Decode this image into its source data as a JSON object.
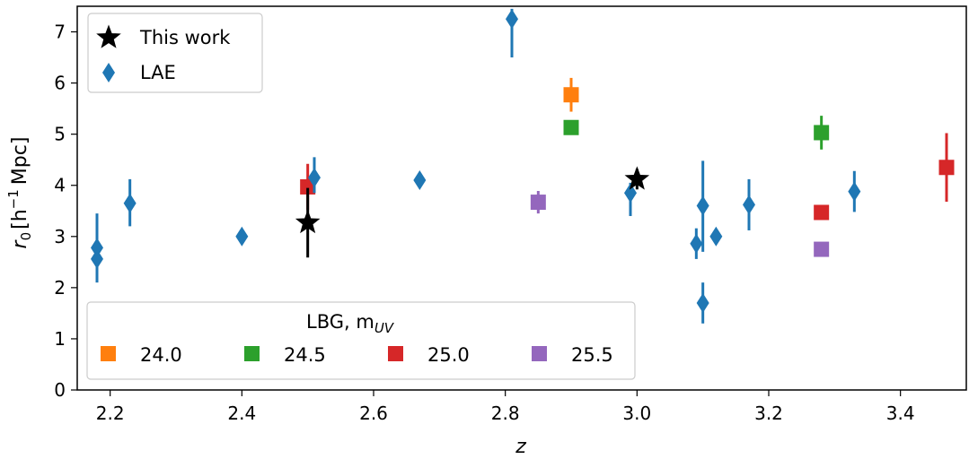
{
  "chart_data": {
    "type": "scatter",
    "xlabel": "z",
    "ylabel_main": "r",
    "ylabel_sub": "0",
    "ylabel_units": "[h",
    "ylabel_sup": "−1",
    "ylabel_tail": "Mpc]",
    "xlim": [
      2.15,
      3.5
    ],
    "ylim": [
      0,
      7.5
    ],
    "xticks": [
      "2.2",
      "2.4",
      "2.6",
      "2.8",
      "3.0",
      "3.2",
      "3.4"
    ],
    "xtick_values": [
      2.2,
      2.4,
      2.6,
      2.8,
      3.0,
      3.2,
      3.4
    ],
    "yticks": [
      "0",
      "1",
      "2",
      "3",
      "4",
      "5",
      "6",
      "7"
    ],
    "ytick_values": [
      0,
      1,
      2,
      3,
      4,
      5,
      6,
      7
    ],
    "grid": false,
    "legend_top": {
      "placement": "top-left",
      "entries": [
        {
          "label": "This work",
          "marker": "star",
          "color": "#000000"
        },
        {
          "label": "LAE",
          "marker": "diamond",
          "color": "#1f77b4"
        }
      ]
    },
    "legend_bottom": {
      "placement": "lower-left",
      "title_main": "LBG, m",
      "title_sub": "UV",
      "entries": [
        {
          "label": "24.0",
          "color": "#ff7f0e"
        },
        {
          "label": "24.5",
          "color": "#2ca02c"
        },
        {
          "label": "25.0",
          "color": "#d62728"
        },
        {
          "label": "25.5",
          "color": "#9467bd"
        }
      ]
    },
    "series": [
      {
        "name": "This work",
        "marker": "star",
        "color": "#000000",
        "points": [
          {
            "x": 2.5,
            "y": 3.27,
            "yerr": [
              0.68,
              0.68
            ]
          },
          {
            "x": 3.0,
            "y": 4.12,
            "yerr": [
              0.2,
              0.2
            ]
          }
        ]
      },
      {
        "name": "LAE",
        "marker": "diamond",
        "color": "#1f77b4",
        "points": [
          {
            "x": 2.18,
            "y": 2.78,
            "yerr": [
              0.0,
              0.67
            ]
          },
          {
            "x": 2.18,
            "y": 2.56,
            "yerr": [
              0.46,
              0.3
            ]
          },
          {
            "x": 2.23,
            "y": 3.65,
            "yerr": [
              0.45,
              0.47
            ]
          },
          {
            "x": 2.4,
            "y": 3.0,
            "yerr": [
              0.1,
              0.1
            ]
          },
          {
            "x": 2.51,
            "y": 4.15,
            "yerr": [
              0.3,
              0.4
            ]
          },
          {
            "x": 2.67,
            "y": 4.1,
            "yerr": [
              0.1,
              0.1
            ]
          },
          {
            "x": 2.81,
            "y": 7.25,
            "yerr": [
              0.75,
              0.2
            ]
          },
          {
            "x": 2.99,
            "y": 3.85,
            "yerr": [
              0.45,
              0.2
            ]
          },
          {
            "x": 3.09,
            "y": 2.86,
            "yerr": [
              0.3,
              0.3
            ]
          },
          {
            "x": 3.1,
            "y": 3.6,
            "yerr": [
              0.9,
              0.88
            ]
          },
          {
            "x": 3.1,
            "y": 1.7,
            "yerr": [
              0.4,
              0.4
            ]
          },
          {
            "x": 3.12,
            "y": 3.0,
            "yerr": [
              0.1,
              0.1
            ]
          },
          {
            "x": 3.17,
            "y": 3.62,
            "yerr": [
              0.5,
              0.5
            ]
          },
          {
            "x": 3.33,
            "y": 3.88,
            "yerr": [
              0.4,
              0.4
            ]
          }
        ]
      },
      {
        "name": "24.0",
        "marker": "square",
        "color": "#ff7f0e",
        "points": [
          {
            "x": 2.9,
            "y": 5.77,
            "yerr": [
              0.33,
              0.33
            ]
          }
        ]
      },
      {
        "name": "24.5",
        "marker": "square",
        "color": "#2ca02c",
        "points": [
          {
            "x": 2.9,
            "y": 5.13,
            "yerr": [
              0.05,
              0.05
            ]
          },
          {
            "x": 3.28,
            "y": 5.03,
            "yerr": [
              0.33,
              0.33
            ]
          }
        ]
      },
      {
        "name": "25.0",
        "marker": "square",
        "color": "#d62728",
        "points": [
          {
            "x": 2.5,
            "y": 3.97,
            "yerr": [
              0.45,
              0.45
            ]
          },
          {
            "x": 3.28,
            "y": 3.47,
            "yerr": [
              0.05,
              0.05
            ]
          },
          {
            "x": 3.47,
            "y": 4.35,
            "yerr": [
              0.67,
              0.67
            ]
          }
        ]
      },
      {
        "name": "25.5",
        "marker": "square",
        "color": "#9467bd",
        "points": [
          {
            "x": 2.85,
            "y": 3.67,
            "yerr": [
              0.22,
              0.22
            ]
          },
          {
            "x": 3.28,
            "y": 2.75,
            "yerr": [
              0.05,
              0.05
            ]
          }
        ]
      }
    ]
  }
}
